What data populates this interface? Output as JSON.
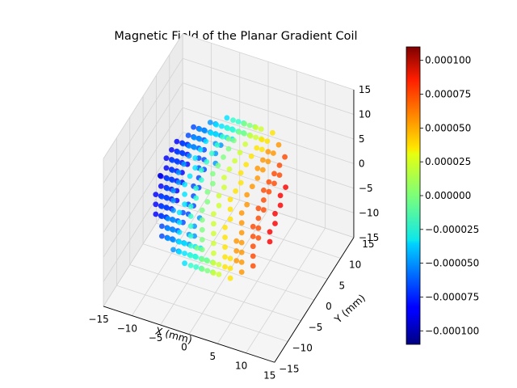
{
  "chart_data": {
    "type": "scatter3d",
    "title": "Magnetic Field of the Planar Gradient Coil",
    "xlabel": "X (mm)",
    "ylabel": "Y (mm)",
    "zlabel": "",
    "xlim": [
      -15,
      15
    ],
    "ylim": [
      -15,
      15
    ],
    "zlim": [
      -15,
      15
    ],
    "xticks": [
      "−15",
      "−10",
      "−5",
      "0",
      "5",
      "10",
      "15"
    ],
    "yticks": [
      "−15",
      "−10",
      "−5",
      "0",
      "5",
      "10",
      "15"
    ],
    "zticks": [
      "−15",
      "−10",
      "−5",
      "0",
      "5",
      "10",
      "15"
    ],
    "sphere": {
      "radius_mm": 12,
      "grid_step_mm": 2,
      "color_quantity": "x"
    },
    "colormap": "jet",
    "colorbar": {
      "min": -0.00011,
      "max": 0.00011,
      "ticks": [
        "−0.000100",
        "−0.000075",
        "−0.000050",
        "−0.000025",
        "0.000000",
        "0.000025",
        "0.000050",
        "0.000075",
        "0.000100"
      ],
      "tick_values": [
        -0.0001,
        -7.5e-05,
        -5e-05,
        -2.5e-05,
        0,
        2.5e-05,
        5e-05,
        7.5e-05,
        0.0001
      ]
    },
    "grid": true
  }
}
